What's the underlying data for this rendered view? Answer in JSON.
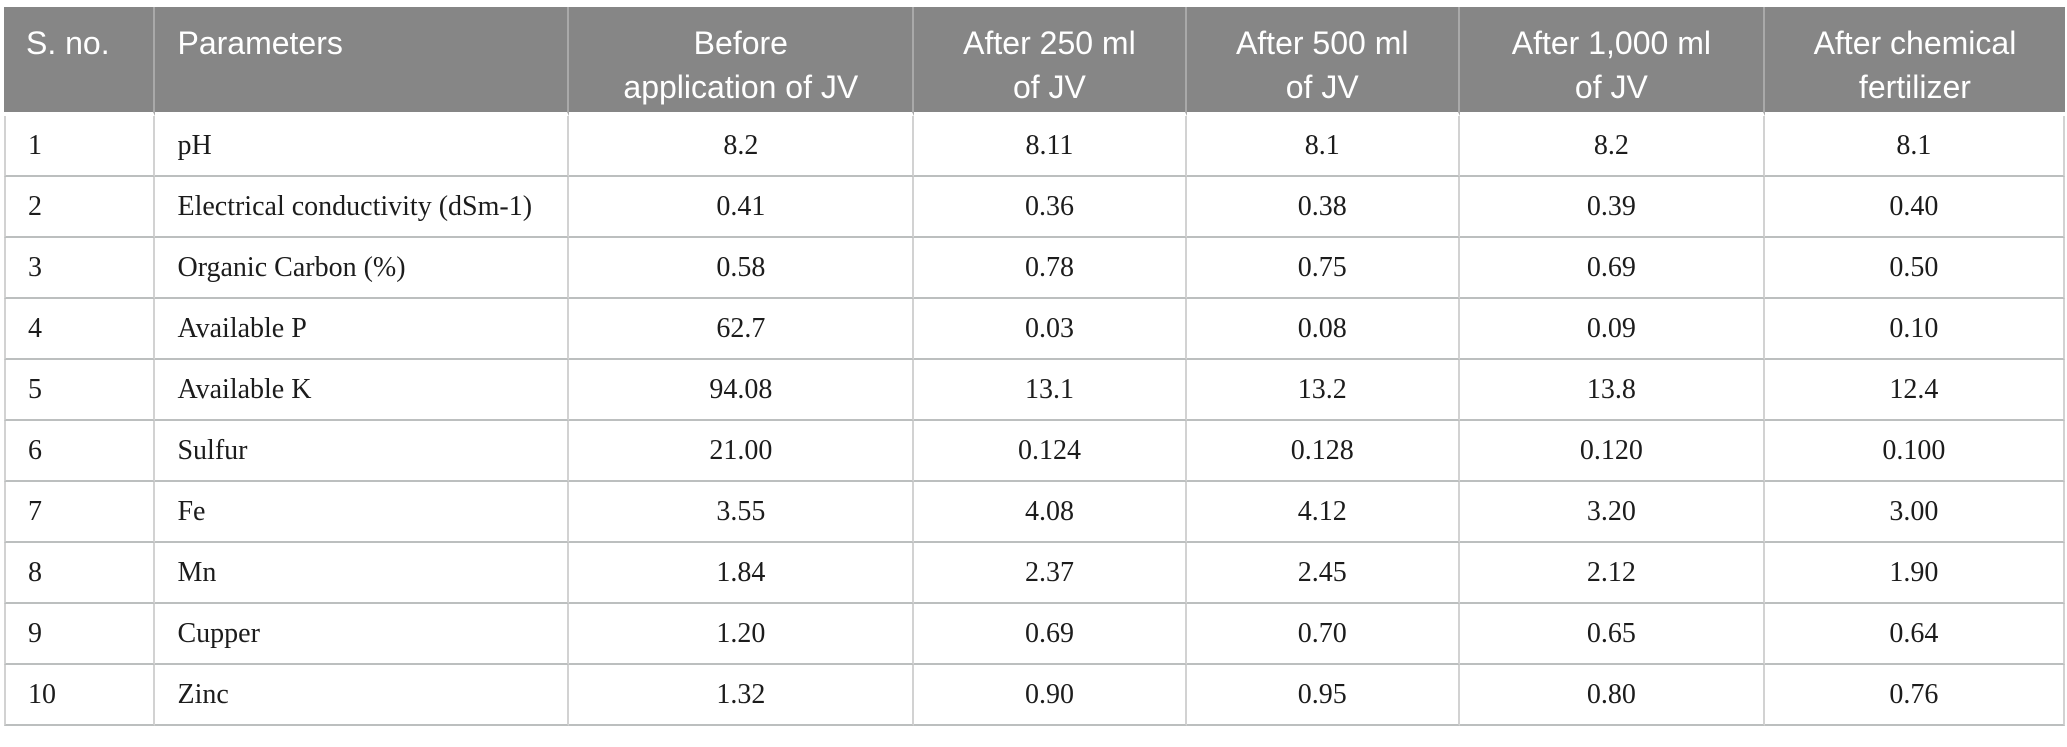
{
  "style": {
    "header_background": "#868686",
    "header_text_color": "#ffffff",
    "body_text_color": "#1c1c1c",
    "row_border_color": "#bcbfbf",
    "column_border_color": "#d2d2d2",
    "page_background": "#ffffff"
  },
  "table": {
    "columns": [
      {
        "key": "sno",
        "align": "left",
        "label": "S. no.",
        "label_lines": [
          "S. no."
        ]
      },
      {
        "key": "param",
        "align": "left",
        "label": "Parameters",
        "label_lines": [
          "Parameters"
        ]
      },
      {
        "key": "before",
        "align": "center",
        "label": "Before application of JV",
        "label_lines": [
          "Before",
          "application of JV"
        ]
      },
      {
        "key": "a250",
        "align": "center",
        "label": "After 250 ml of JV",
        "label_lines": [
          "After 250 ml",
          "of JV"
        ]
      },
      {
        "key": "a500",
        "align": "center",
        "label": "After 500 ml of JV",
        "label_lines": [
          "After 500 ml",
          "of JV"
        ]
      },
      {
        "key": "a1000",
        "align": "center",
        "label": "After 1,000 ml of JV",
        "label_lines": [
          "After 1,000 ml",
          "of JV"
        ]
      },
      {
        "key": "chem",
        "align": "center",
        "label": "After chemical fertilizer",
        "label_lines": [
          "After chemical",
          "fertilizer"
        ]
      }
    ],
    "rows": [
      [
        "1",
        "pH",
        "8.2",
        "8.11",
        "8.1",
        "8.2",
        "8.1"
      ],
      [
        "2",
        "Electrical conductivity (dSm-1)",
        "0.41",
        "0.36",
        "0.38",
        "0.39",
        "0.40"
      ],
      [
        "3",
        "Organic Carbon (%)",
        "0.58",
        "0.78",
        "0.75",
        "0.69",
        "0.50"
      ],
      [
        "4",
        "Available P",
        "62.7",
        "0.03",
        "0.08",
        "0.09",
        "0.10"
      ],
      [
        "5",
        "Available K",
        "94.08",
        "13.1",
        "13.2",
        "13.8",
        "12.4"
      ],
      [
        "6",
        "Sulfur",
        "21.00",
        "0.124",
        "0.128",
        "0.120",
        "0.100"
      ],
      [
        "7",
        "Fe",
        "3.55",
        "4.08",
        "4.12",
        "3.20",
        "3.00"
      ],
      [
        "8",
        "Mn",
        "1.84",
        "2.37",
        "2.45",
        "2.12",
        "1.90"
      ],
      [
        "9",
        "Cupper",
        "1.20",
        "0.69",
        "0.70",
        "0.65",
        "0.64"
      ],
      [
        "10",
        "Zinc",
        "1.32",
        "0.90",
        "0.95",
        "0.80",
        "0.76"
      ]
    ]
  }
}
